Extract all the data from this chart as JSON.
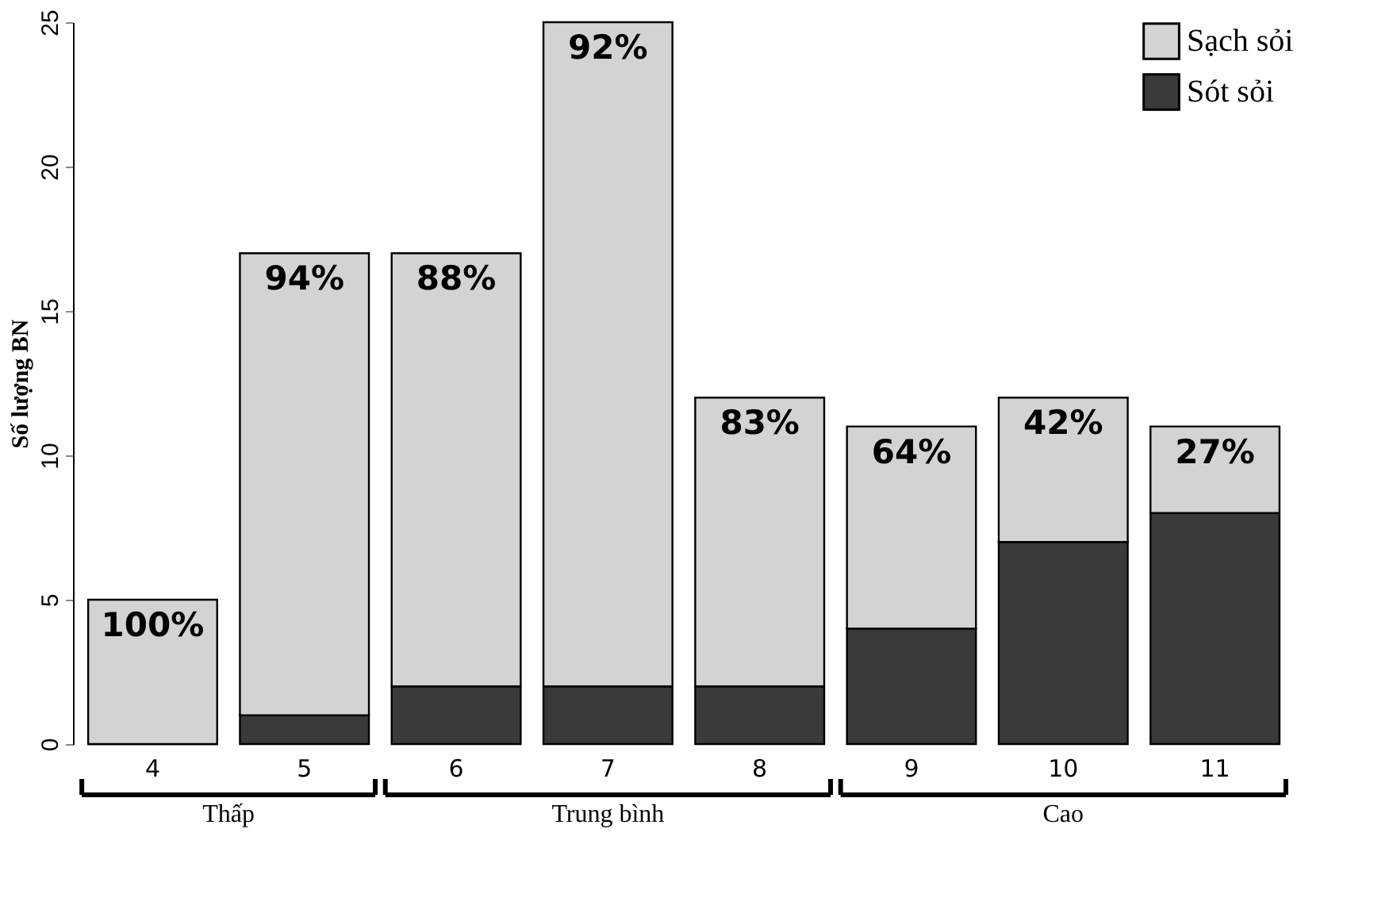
{
  "chart_data": {
    "type": "bar",
    "stacked": true,
    "ylabel": "Số lượng BN",
    "categories": [
      "4",
      "5",
      "6",
      "7",
      "8",
      "9",
      "10",
      "11"
    ],
    "series": [
      {
        "name": "Sót sỏi",
        "color": "#3a3a3a",
        "values": [
          0,
          1,
          2,
          2,
          2,
          4,
          7,
          8
        ]
      },
      {
        "name": "Sạch sỏi",
        "color": "#d3d3d3",
        "values": [
          5,
          16,
          15,
          23,
          10,
          7,
          5,
          3
        ]
      }
    ],
    "ylim": [
      0,
      25
    ],
    "yticks": [
      0,
      5,
      10,
      15,
      20,
      25
    ],
    "grid": false,
    "legend": "top right",
    "annotations": [
      "Thấp",
      "Trung bình",
      "Cao",
      {
        "text": "100%",
        "x": "4",
        "y": 5
      },
      {
        "text": "94%",
        "x": "5",
        "y": 17
      },
      {
        "text": "88%",
        "x": "6",
        "y": 17
      },
      {
        "text": "92%",
        "x": "7",
        "y": 25
      },
      {
        "text": "83%",
        "x": "8",
        "y": 12
      },
      {
        "text": "64%",
        "x": "9",
        "y": 11
      },
      {
        "text": "42%",
        "x": "10",
        "y": 12
      },
      {
        "text": "27%",
        "x": "11",
        "y": 11
      }
    ]
  }
}
